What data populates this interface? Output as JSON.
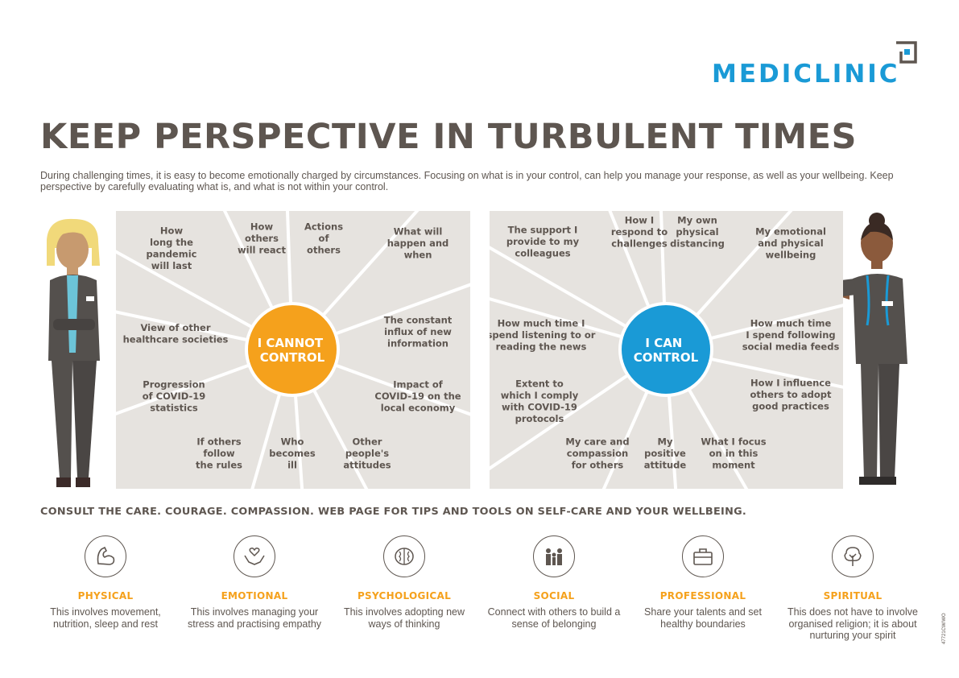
{
  "brand": {
    "name": "MEDICLINIC",
    "color": "#1a9ad6"
  },
  "title": "KEEP PERSPECTIVE IN TURBULENT TIMES",
  "intro": "During challenging times, it is easy to become emotionally charged by circumstances. Focusing on what is in your control, can help you manage your response, as well as your wellbeing. Keep perspective by carefully evaluating what is, and what is not within your control.",
  "cannot_control": {
    "center": [
      "I CANNOT",
      "CONTROL"
    ],
    "center_color": "#f5a11c",
    "items": [
      [
        "How",
        "long the",
        "pandemic",
        "will last"
      ],
      [
        "How",
        "others",
        "will react"
      ],
      [
        "Actions",
        "of",
        "others"
      ],
      [
        "What will",
        "happen and",
        "when"
      ],
      [
        "The constant",
        "influx of new",
        "information"
      ],
      [
        "Impact of",
        "COVID-19 on the",
        "local economy"
      ],
      [
        "Other",
        "people's",
        "attitudes"
      ],
      [
        "Who",
        "becomes",
        "ill"
      ],
      [
        "If others",
        "follow",
        "the rules"
      ],
      [
        "Progression",
        "of COVID-19",
        "statistics"
      ],
      [
        "View of other",
        "healthcare societies"
      ]
    ]
  },
  "can_control": {
    "center": [
      "I CAN",
      "CONTROL"
    ],
    "center_color": "#1a9ad6",
    "items": [
      [
        "The support I",
        "provide to my",
        "colleagues"
      ],
      [
        "How I",
        "respond to",
        "challenges"
      ],
      [
        "My own",
        "physical",
        "distancing"
      ],
      [
        "My emotional",
        "and physical",
        "wellbeing"
      ],
      [
        "How much time",
        "I spend following",
        "social media feeds"
      ],
      [
        "How I influence",
        "others to adopt",
        "good practices"
      ],
      [
        "What I focus",
        "on in this",
        "moment"
      ],
      [
        "My",
        "positive",
        "attitude"
      ],
      [
        "My care and",
        "compassion",
        "for others"
      ],
      [
        "Extent to",
        "which I comply",
        "with COVID-19",
        "protocols"
      ],
      [
        "How much time I",
        "spend listening to or",
        "reading the news"
      ]
    ]
  },
  "consult": "CONSULT THE CARE. COURAGE. COMPASSION. WEB PAGE FOR TIPS AND TOOLS ON SELF-CARE AND YOUR WELLBEING.",
  "pillars": [
    {
      "title": "PHYSICAL",
      "desc": "This involves movement, nutrition, sleep and rest",
      "icon": "flexed-arm-icon"
    },
    {
      "title": "EMOTIONAL",
      "desc": "This involves managing your stress and practising empathy",
      "icon": "heart-hands-icon"
    },
    {
      "title": "PSYCHOLOGICAL",
      "desc": "This involves adopting new ways of thinking",
      "icon": "brain-icon"
    },
    {
      "title": "SOCIAL",
      "desc": "Connect with others to build a sense of belonging",
      "icon": "people-icon"
    },
    {
      "title": "PROFESSIONAL",
      "desc": "Share your talents and set healthy boundaries",
      "icon": "briefcase-icon"
    },
    {
      "title": "SPIRITUAL",
      "desc": "This does not have to involve organised religion; it is about nurturing your spirit",
      "icon": "tree-icon"
    }
  ],
  "doc_code": "47721CW/WO",
  "colors": {
    "panel": "#e6e3df",
    "text": "#5e5650",
    "accent_orange": "#f5a11c",
    "accent_blue": "#1a9ad6"
  }
}
